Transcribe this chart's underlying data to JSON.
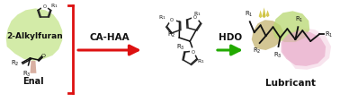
{
  "fig_width": 3.78,
  "fig_height": 1.15,
  "dpi": 100,
  "bg_color": "#ffffff",
  "tree_color": "#cce899",
  "tree_trunk_color": "#d4a898",
  "furan_stroke": "#222222",
  "arrow1_color": "#dd1111",
  "arrow2_color": "#22aa00",
  "label_cahaa": "CA-HAA",
  "label_hdo": "HDO",
  "label_2alkylfuran": "2-Alkylfuran",
  "label_enal": "Enal",
  "label_lubricant": "Lubricant",
  "bracket_color": "#dd1111",
  "blob_tan": "#c8b87a",
  "blob_green": "#b8d870",
  "blob_pink": "#e8a8c8",
  "blob_yellow": "#e0e050",
  "mol_stroke": "#111111"
}
